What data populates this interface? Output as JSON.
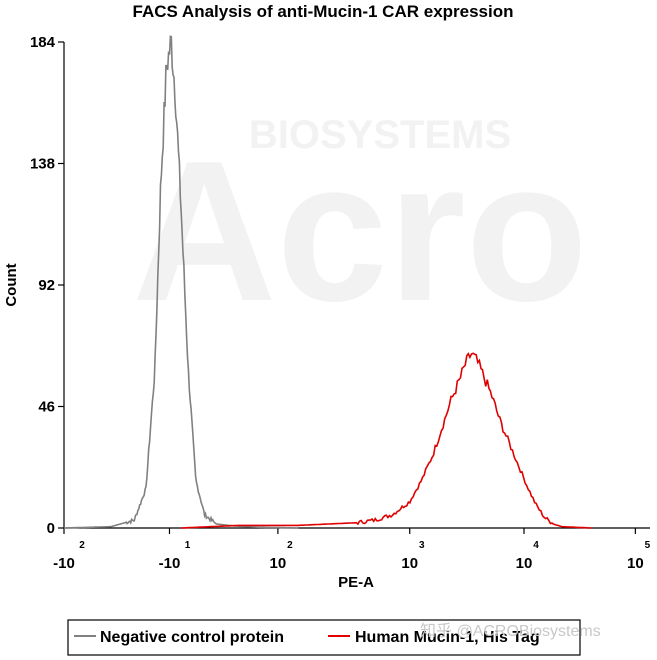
{
  "chart_data": {
    "type": "line",
    "title": "FACS Analysis of anti-Mucin-1 CAR expression",
    "xlabel": "PE-A",
    "ylabel": "Count",
    "ylim": [
      0,
      184
    ],
    "yticks": [
      {
        "label": "0",
        "value": 0
      },
      {
        "label": "46",
        "value": 46
      },
      {
        "label": "92",
        "value": 92
      },
      {
        "label": "138",
        "value": 138
      },
      {
        "label": "184",
        "value": 184
      }
    ],
    "xticks": [
      {
        "base": "-10",
        "exp": "2",
        "pos": 0.0
      },
      {
        "base": "-10",
        "exp": "1",
        "pos": 0.18
      },
      {
        "base": "10",
        "exp": "2",
        "pos": 0.365
      },
      {
        "base": "10",
        "exp": "3",
        "pos": 0.59
      },
      {
        "base": "10",
        "exp": "4",
        "pos": 0.785
      },
      {
        "base": "10",
        "exp": "5",
        "pos": 0.975
      }
    ],
    "series": [
      {
        "name": "Negative control protein",
        "color": "#808080",
        "x": [
          0.0,
          0.08,
          0.12,
          0.14,
          0.155,
          0.165,
          0.175,
          0.183,
          0.19,
          0.2,
          0.212,
          0.225,
          0.24,
          0.26,
          0.29,
          0.33,
          0.4
        ],
        "y": [
          0,
          0.5,
          3,
          15,
          60,
          130,
          175,
          184,
          165,
          120,
          60,
          18,
          5,
          1.5,
          0.8,
          0.3,
          0
        ]
      },
      {
        "name": "Human Mucin-1, His Tag",
        "color": "#e00000",
        "x": [
          0.2,
          0.3,
          0.4,
          0.45,
          0.5,
          0.53,
          0.56,
          0.59,
          0.61,
          0.63,
          0.645,
          0.66,
          0.675,
          0.685,
          0.695,
          0.705,
          0.715,
          0.73,
          0.745,
          0.76,
          0.775,
          0.79,
          0.805,
          0.82,
          0.835,
          0.85,
          0.9
        ],
        "y": [
          0,
          1,
          1,
          1.5,
          2,
          3,
          5,
          10,
          18,
          28,
          38,
          48,
          56,
          62,
          66,
          63,
          58,
          50,
          40,
          32,
          24,
          16,
          9,
          4,
          1.5,
          0.5,
          0
        ]
      }
    ]
  },
  "legend": {
    "items": [
      "Negative control protein",
      "Human Mucin-1, His Tag"
    ]
  },
  "watermark": {
    "brand": "BIOSYSTEMS",
    "logo": "Acro",
    "credit": "知乎 @ACROBiosystems"
  }
}
